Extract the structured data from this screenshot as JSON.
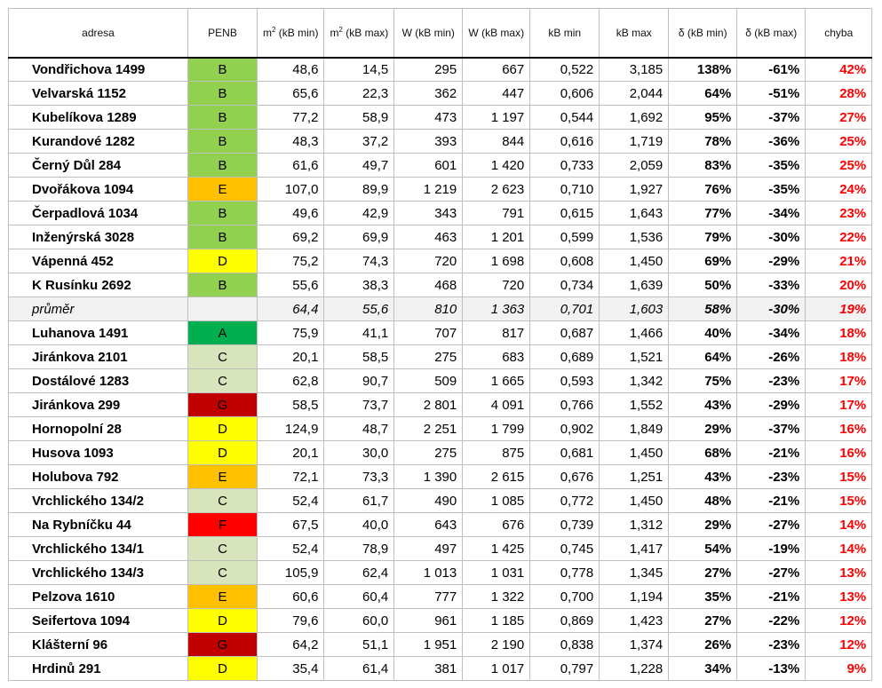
{
  "columns": {
    "adresa": "adresa",
    "penb": "PENB",
    "m2_min_prefix": "m",
    "m2_min_sup": "2",
    "m2_min_suffix": " (kB min)",
    "m2_max_prefix": "m",
    "m2_max_sup": "2",
    "m2_max_suffix": " (kB max)",
    "w_min": "W (kB min)",
    "w_max": "W (kB max)",
    "kb_min": "kB min",
    "kb_max": "kB max",
    "d_min": "δ (kB min)",
    "d_max": "δ (kB max)",
    "chyba": "chyba"
  },
  "penb_colors": {
    "A": "#00b050",
    "B": "#92d050",
    "C": "#d8e4bc",
    "D": "#ffff00",
    "E": "#ffc000",
    "F": "#ff0000",
    "G": "#c00000"
  },
  "rows": [
    {
      "adresa": "Vondřichova 1499",
      "penb": "B",
      "m2min": "48,6",
      "m2max": "14,5",
      "wmin": "295",
      "wmax": "667",
      "kbmin": "0,522",
      "kbmax": "3,185",
      "dmin": "138%",
      "dmax": "-61%",
      "chyba": "42%"
    },
    {
      "adresa": "Velvarská 1152",
      "penb": "B",
      "m2min": "65,6",
      "m2max": "22,3",
      "wmin": "362",
      "wmax": "447",
      "kbmin": "0,606",
      "kbmax": "2,044",
      "dmin": "64%",
      "dmax": "-51%",
      "chyba": "28%"
    },
    {
      "adresa": "Kubelíkova 1289",
      "penb": "B",
      "m2min": "77,2",
      "m2max": "58,9",
      "wmin": "473",
      "wmax": "1 197",
      "kbmin": "0,544",
      "kbmax": "1,692",
      "dmin": "95%",
      "dmax": "-37%",
      "chyba": "27%"
    },
    {
      "adresa": "Kurandové 1282",
      "penb": "B",
      "m2min": "48,3",
      "m2max": "37,2",
      "wmin": "393",
      "wmax": "844",
      "kbmin": "0,616",
      "kbmax": "1,719",
      "dmin": "78%",
      "dmax": "-36%",
      "chyba": "25%"
    },
    {
      "adresa": "Černý Důl 284",
      "penb": "B",
      "m2min": "61,6",
      "m2max": "49,7",
      "wmin": "601",
      "wmax": "1 420",
      "kbmin": "0,733",
      "kbmax": "2,059",
      "dmin": "83%",
      "dmax": "-35%",
      "chyba": "25%"
    },
    {
      "adresa": "Dvořákova 1094",
      "penb": "E",
      "m2min": "107,0",
      "m2max": "89,9",
      "wmin": "1 219",
      "wmax": "2 623",
      "kbmin": "0,710",
      "kbmax": "1,927",
      "dmin": "76%",
      "dmax": "-35%",
      "chyba": "24%"
    },
    {
      "adresa": "Čerpadlová 1034",
      "penb": "B",
      "m2min": "49,6",
      "m2max": "42,9",
      "wmin": "343",
      "wmax": "791",
      "kbmin": "0,615",
      "kbmax": "1,643",
      "dmin": "77%",
      "dmax": "-34%",
      "chyba": "23%"
    },
    {
      "adresa": "Inženýrská 3028",
      "penb": "B",
      "m2min": "69,2",
      "m2max": "69,9",
      "wmin": "463",
      "wmax": "1 201",
      "kbmin": "0,599",
      "kbmax": "1,536",
      "dmin": "79%",
      "dmax": "-30%",
      "chyba": "22%"
    },
    {
      "adresa": "Vápenná 452",
      "penb": "D",
      "m2min": "75,2",
      "m2max": "74,3",
      "wmin": "720",
      "wmax": "1 698",
      "kbmin": "0,608",
      "kbmax": "1,450",
      "dmin": "69%",
      "dmax": "-29%",
      "chyba": "21%"
    },
    {
      "adresa": "K Rusínku 2692",
      "penb": "B",
      "m2min": "55,6",
      "m2max": "38,3",
      "wmin": "468",
      "wmax": "720",
      "kbmin": "0,734",
      "kbmax": "1,639",
      "dmin": "50%",
      "dmax": "-33%",
      "chyba": "20%"
    },
    {
      "avg": true,
      "adresa": "průměr",
      "penb": "",
      "m2min": "64,4",
      "m2max": "55,6",
      "wmin": "810",
      "wmax": "1 363",
      "kbmin": "0,701",
      "kbmax": "1,603",
      "dmin": "58%",
      "dmax": "-30%",
      "chyba": "19%"
    },
    {
      "adresa": "Luhanova 1491",
      "penb": "A",
      "m2min": "75,9",
      "m2max": "41,1",
      "wmin": "707",
      "wmax": "817",
      "kbmin": "0,687",
      "kbmax": "1,466",
      "dmin": "40%",
      "dmax": "-34%",
      "chyba": "18%"
    },
    {
      "adresa": "Jiránkova 2101",
      "penb": "C",
      "m2min": "20,1",
      "m2max": "58,5",
      "wmin": "275",
      "wmax": "683",
      "kbmin": "0,689",
      "kbmax": "1,521",
      "dmin": "64%",
      "dmax": "-26%",
      "chyba": "18%"
    },
    {
      "adresa": "Dostálové 1283",
      "penb": "C",
      "m2min": "62,8",
      "m2max": "90,7",
      "wmin": "509",
      "wmax": "1 665",
      "kbmin": "0,593",
      "kbmax": "1,342",
      "dmin": "75%",
      "dmax": "-23%",
      "chyba": "17%"
    },
    {
      "adresa": "Jiránkova 299",
      "penb": "G",
      "m2min": "58,5",
      "m2max": "73,7",
      "wmin": "2 801",
      "wmax": "4 091",
      "kbmin": "0,766",
      "kbmax": "1,552",
      "dmin": "43%",
      "dmax": "-29%",
      "chyba": "17%"
    },
    {
      "adresa": "Hornopolní 28",
      "penb": "D",
      "m2min": "124,9",
      "m2max": "48,7",
      "wmin": "2 251",
      "wmax": "1 799",
      "kbmin": "0,902",
      "kbmax": "1,849",
      "dmin": "29%",
      "dmax": "-37%",
      "chyba": "16%"
    },
    {
      "adresa": "Husova 1093",
      "penb": "D",
      "m2min": "20,1",
      "m2max": "30,0",
      "wmin": "275",
      "wmax": "875",
      "kbmin": "0,681",
      "kbmax": "1,450",
      "dmin": "68%",
      "dmax": "-21%",
      "chyba": "16%"
    },
    {
      "adresa": "Holubova 792",
      "penb": "E",
      "m2min": "72,1",
      "m2max": "73,3",
      "wmin": "1 390",
      "wmax": "2 615",
      "kbmin": "0,676",
      "kbmax": "1,251",
      "dmin": "43%",
      "dmax": "-23%",
      "chyba": "15%"
    },
    {
      "adresa": "Vrchlického 134/2",
      "penb": "C",
      "m2min": "52,4",
      "m2max": "61,7",
      "wmin": "490",
      "wmax": "1 085",
      "kbmin": "0,772",
      "kbmax": "1,450",
      "dmin": "48%",
      "dmax": "-21%",
      "chyba": "15%"
    },
    {
      "adresa": "Na Rybníčku 44",
      "penb": "F",
      "m2min": "67,5",
      "m2max": "40,0",
      "wmin": "643",
      "wmax": "676",
      "kbmin": "0,739",
      "kbmax": "1,312",
      "dmin": "29%",
      "dmax": "-27%",
      "chyba": "14%"
    },
    {
      "adresa": "Vrchlického 134/1",
      "penb": "C",
      "m2min": "52,4",
      "m2max": "78,9",
      "wmin": "497",
      "wmax": "1 425",
      "kbmin": "0,745",
      "kbmax": "1,417",
      "dmin": "54%",
      "dmax": "-19%",
      "chyba": "14%"
    },
    {
      "adresa": "Vrchlického 134/3",
      "penb": "C",
      "m2min": "105,9",
      "m2max": "62,4",
      "wmin": "1 013",
      "wmax": "1 031",
      "kbmin": "0,778",
      "kbmax": "1,345",
      "dmin": "27%",
      "dmax": "-27%",
      "chyba": "13%"
    },
    {
      "adresa": "Pelzova 1610",
      "penb": "E",
      "m2min": "60,6",
      "m2max": "60,4",
      "wmin": "777",
      "wmax": "1 322",
      "kbmin": "0,700",
      "kbmax": "1,194",
      "dmin": "35%",
      "dmax": "-21%",
      "chyba": "13%"
    },
    {
      "adresa": "Seifertova 1094",
      "penb": "D",
      "m2min": "79,6",
      "m2max": "60,0",
      "wmin": "961",
      "wmax": "1 185",
      "kbmin": "0,869",
      "kbmax": "1,423",
      "dmin": "27%",
      "dmax": "-22%",
      "chyba": "12%"
    },
    {
      "adresa": "Klášterní 96",
      "penb": "G",
      "m2min": "64,2",
      "m2max": "51,1",
      "wmin": "1 951",
      "wmax": "2 190",
      "kbmin": "0,838",
      "kbmax": "1,374",
      "dmin": "26%",
      "dmax": "-23%",
      "chyba": "12%"
    },
    {
      "adresa": "Hrdinů 291",
      "penb": "D",
      "m2min": "35,4",
      "m2max": "61,4",
      "wmin": "381",
      "wmax": "1 017",
      "kbmin": "0,797",
      "kbmax": "1,228",
      "dmin": "34%",
      "dmax": "-13%",
      "chyba": "9%"
    }
  ]
}
